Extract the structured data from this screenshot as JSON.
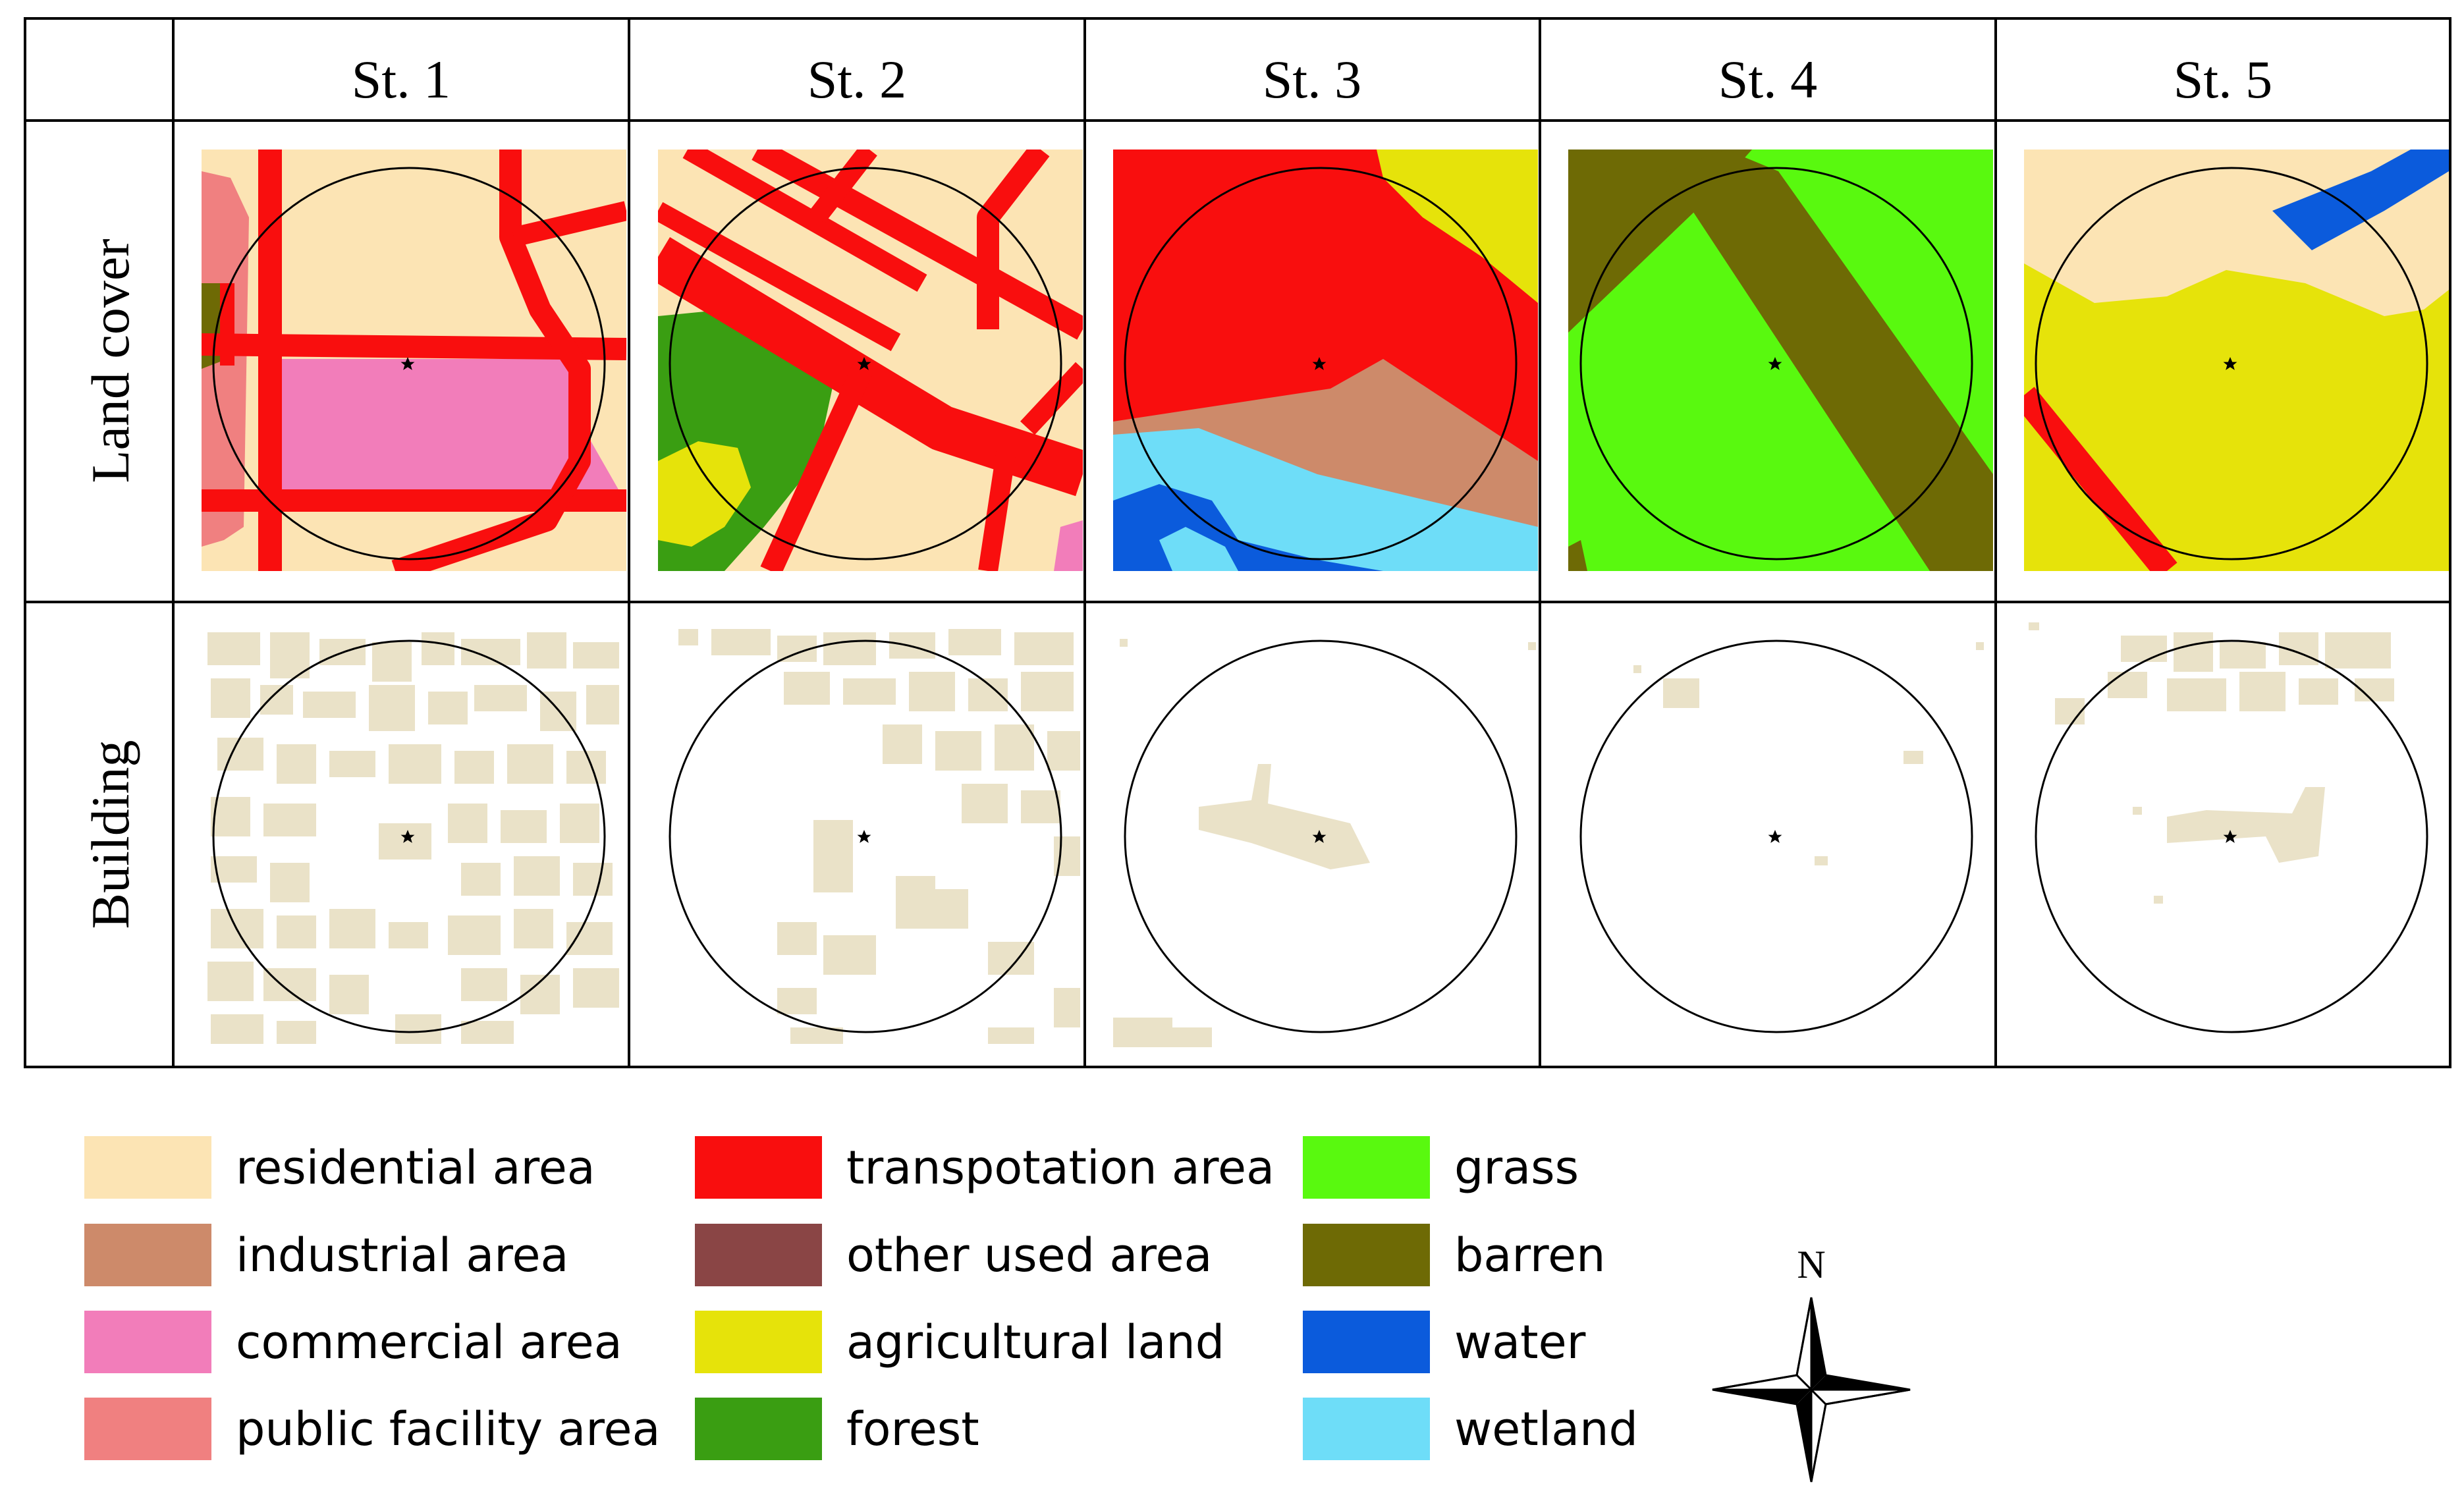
{
  "columns": [
    "St. 1",
    "St. 2",
    "St. 3",
    "St. 4",
    "St. 5"
  ],
  "rows": [
    "Land cover",
    "Building"
  ],
  "colors": {
    "residential": "#FCE4B4",
    "industrial": "#CD8A6A",
    "commercial": "#F27DBA",
    "public": "#F08080",
    "transport": "#F90E0E",
    "other": "#8A4545",
    "agricultural": "#E6E30A",
    "forest": "#3A9E12",
    "grass": "#59F90F",
    "barren": "#6E6A05",
    "water": "#0B5BDC",
    "wetland": "#6EDDF8",
    "building": "#EAE2C8"
  },
  "legend": [
    {
      "label": "residential area",
      "color": "#FCE4B4"
    },
    {
      "label": "industrial area",
      "color": "#CD8A6A"
    },
    {
      "label": "commercial area",
      "color": "#F27DBA"
    },
    {
      "label": "public facility area",
      "color": "#F08080"
    },
    {
      "label": "transpotation area",
      "color": "#F90E0E"
    },
    {
      "label": "other used area",
      "color": "#8A4545"
    },
    {
      "label": "agricultural land",
      "color": "#E6E30A"
    },
    {
      "label": "forest",
      "color": "#3A9E12"
    },
    {
      "label": "grass",
      "color": "#59F90F"
    },
    {
      "label": "barren",
      "color": "#6E6A05"
    },
    {
      "label": "water",
      "color": "#0B5BDC"
    },
    {
      "label": "wetland",
      "color": "#6EDDF8"
    }
  ],
  "north_label": "N",
  "icons": {
    "station": "star-icon",
    "compass": "compass-rose-icon"
  }
}
